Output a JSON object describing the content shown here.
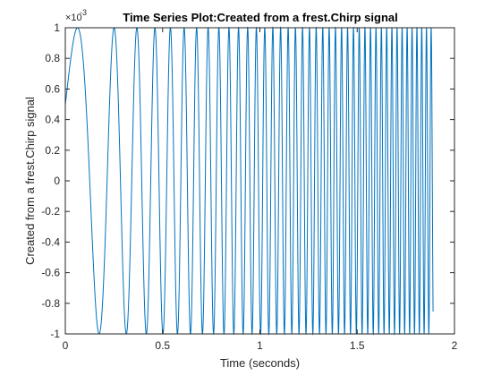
{
  "chart_data": {
    "type": "line",
    "title": "Time Series Plot:Created from a frest.Chirp signal",
    "xlabel": "Time (seconds)",
    "ylabel": "Created from a frest.Chirp signal",
    "y_exponent_base": "×10",
    "y_exponent_power": "-3",
    "xlim": [
      0,
      2
    ],
    "ylim": [
      -1,
      1
    ],
    "x_ticks": [
      0,
      0.5,
      1,
      1.5,
      2
    ],
    "x_tick_labels": [
      "0",
      "0.5",
      "1",
      "1.5",
      "2"
    ],
    "y_ticks": [
      -1,
      -0.8,
      -0.6,
      -0.4,
      -0.2,
      0,
      0.2,
      0.4,
      0.6,
      0.8,
      1
    ],
    "y_tick_labels": [
      "-1",
      "-0.8",
      "-0.6",
      "-0.4",
      "-0.2",
      "0",
      "0.2",
      "0.4",
      "0.6",
      "0.8",
      "1"
    ],
    "grid": false,
    "series": [
      {
        "color": "#0072BD",
        "signal": "chirp",
        "amplitude": 1,
        "t_start": 0,
        "t_end": 1.89,
        "f_start": 2,
        "f_end": 42,
        "phase_offset": 0.52
      }
    ]
  }
}
